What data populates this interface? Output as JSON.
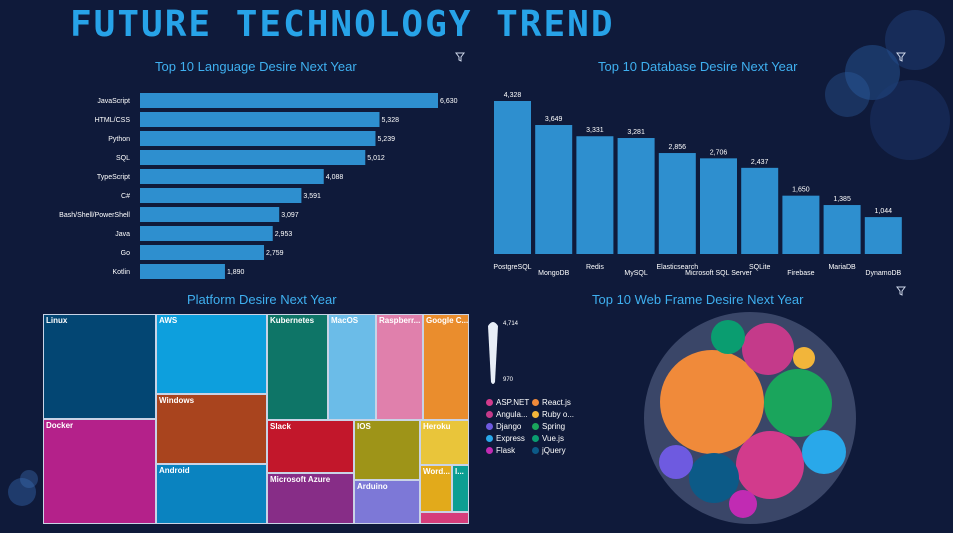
{
  "page": {
    "title": "FUTURE TECHNOLOGY TREND"
  },
  "colors": {
    "background": "#0f1a3a",
    "accent": "#27a3e8",
    "bar": "#2e8fcf"
  },
  "chart_data": [
    {
      "type": "bar",
      "orientation": "horizontal",
      "title": "Top 10 Language Desire Next Year",
      "categories": [
        "JavaScript",
        "HTML/CSS",
        "Python",
        "SQL",
        "TypeScript",
        "C#",
        "Bash/Shell/PowerShell",
        "Java",
        "Go",
        "Kotlin"
      ],
      "values": [
        6630,
        5328,
        5239,
        5012,
        4088,
        3591,
        3097,
        2953,
        2759,
        1890
      ],
      "labels": [
        "6,630",
        "5,328",
        "5,239",
        "5,012",
        "4,088",
        "3,591",
        "3,097",
        "2,953",
        "2,759",
        "1,890"
      ],
      "xlim": [
        0,
        6630
      ]
    },
    {
      "type": "bar",
      "title": "Top 10 Database Desire Next Year",
      "categories": [
        "PostgreSQL",
        "MongoDB",
        "Redis",
        "MySQL",
        "Elasticsearch",
        "Microsoft SQL Server",
        "SQLite",
        "Firebase",
        "MariaDB",
        "DynamoDB"
      ],
      "values": [
        4328,
        3649,
        3331,
        3281,
        2856,
        2706,
        2437,
        1650,
        1385,
        1044
      ],
      "labels": [
        "4,328",
        "3,649",
        "3,331",
        "3,281",
        "2,856",
        "2,706",
        "2,437",
        "1,650",
        "1,385",
        "1,044"
      ],
      "ylim": [
        0,
        4328
      ]
    },
    {
      "type": "treemap",
      "title": "Platform Desire Next Year",
      "items": [
        {
          "label": "Linux",
          "color": "#034673"
        },
        {
          "label": "AWS",
          "color": "#0d9fdd"
        },
        {
          "label": "Kubernetes",
          "color": "#0e7567"
        },
        {
          "label": "MacOS",
          "color": "#6bbce8"
        },
        {
          "label": "Raspberr...",
          "color": "#e080ac"
        },
        {
          "label": "Google C...",
          "color": "#ea8d2d"
        },
        {
          "label": "Docker",
          "color": "#b4218a"
        },
        {
          "label": "Windows",
          "color": "#a9441e"
        },
        {
          "label": "Android",
          "color": "#0a83c0"
        },
        {
          "label": "Slack",
          "color": "#c2172b"
        },
        {
          "label": "IOS",
          "color": "#9e9418"
        },
        {
          "label": "Heroku",
          "color": "#e9c53a"
        },
        {
          "label": "Microsoft Azure",
          "color": "#872d87"
        },
        {
          "label": "Arduino",
          "color": "#7d78d7"
        },
        {
          "label": "Word...",
          "color": "#e2aa1b"
        },
        {
          "label": "I...",
          "color": "#0c9e92"
        },
        {
          "label": "",
          "color": "#d53d7b"
        }
      ]
    },
    {
      "type": "bubble",
      "title": "Top 10 Web Frame Desire Next Year",
      "size_legend": {
        "max": "4,714",
        "min": "970"
      },
      "series": [
        {
          "name": "ASP.NET",
          "color": "#d23b8c"
        },
        {
          "name": "Angula...",
          "color": "#c43a8a"
        },
        {
          "name": "Django",
          "color": "#6e5ae0"
        },
        {
          "name": "Express",
          "color": "#29a8ea"
        },
        {
          "name": "Flask",
          "color": "#c12bb3"
        },
        {
          "name": "React.js",
          "color": "#f08a3a"
        },
        {
          "name": "Ruby o...",
          "color": "#f2b53a"
        },
        {
          "name": "Spring",
          "color": "#1aa55c"
        },
        {
          "name": "Vue.js",
          "color": "#0a9d70"
        },
        {
          "name": "jQuery",
          "color": "#0c5a87"
        }
      ]
    }
  ]
}
